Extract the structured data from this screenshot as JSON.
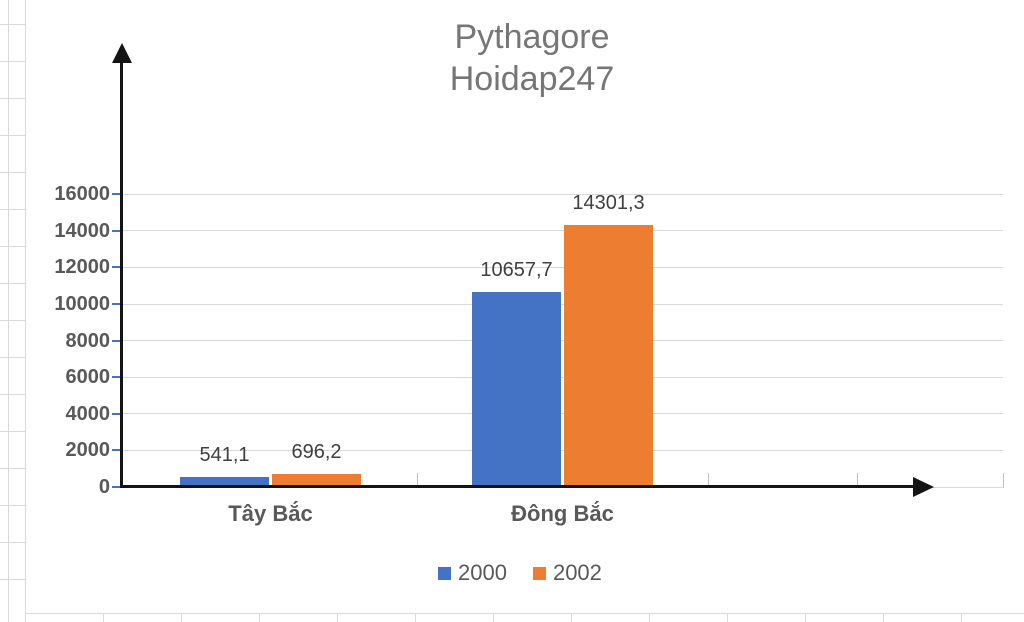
{
  "title": {
    "line1": "Pythagore",
    "line2": "Hoidap247"
  },
  "legend": {
    "position": "bottom",
    "items": [
      {
        "label": "2000",
        "color": "#4472C4"
      },
      {
        "label": "2002",
        "color": "#ED7D31"
      }
    ]
  },
  "colors": {
    "series_2000": "#4472C4",
    "series_2002": "#ED7D31",
    "gridline": "#D9D9D9",
    "axis_arrow": "#141414",
    "y_tick_mark": "#4472C4",
    "title_text": "#767676",
    "data_label_text": "#3F3F3F",
    "category_text": "#595959",
    "background": "#FFFFFF"
  },
  "chart_data": {
    "type": "bar",
    "title": "Pythagore Hoidap247",
    "categories": [
      "Tây Bắc",
      "Đông Bắc"
    ],
    "series": [
      {
        "name": "2000",
        "color": "#4472C4",
        "values": [
          541.1,
          10657.7
        ],
        "data_labels": [
          "541,1",
          "10657,7"
        ]
      },
      {
        "name": "2002",
        "color": "#ED7D31",
        "values": [
          696.2,
          14301.3
        ],
        "data_labels": [
          "696,2",
          "14301,3"
        ]
      }
    ],
    "xlabel": "",
    "ylabel": "",
    "ylim": [
      0,
      16000
    ],
    "y_step": 2000,
    "y_tick_labels": [
      "0",
      "2000",
      "4000",
      "6000",
      "8000",
      "10000",
      "12000",
      "14000",
      "16000"
    ],
    "grid": true,
    "legend_position": "bottom",
    "decimal_separator": ","
  }
}
